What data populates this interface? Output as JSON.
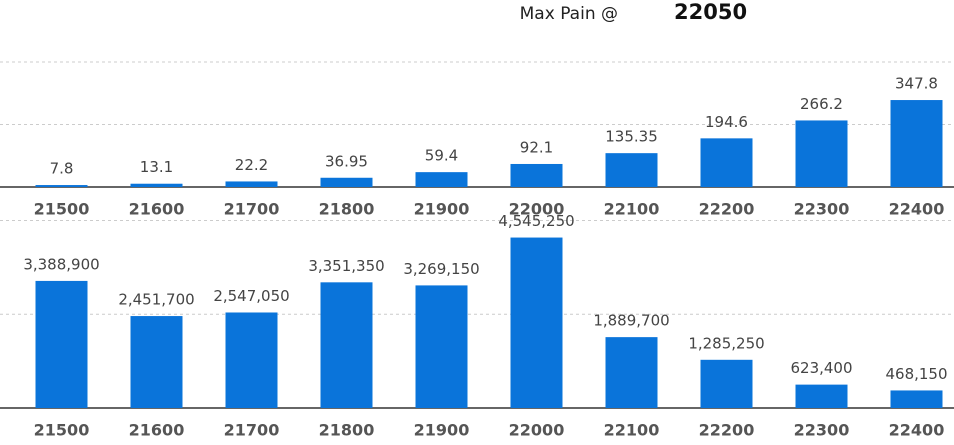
{
  "header": {
    "label": "Max Pain @",
    "value": 22050
  },
  "chart_data": [
    {
      "type": "bar",
      "color": "#0a74da",
      "grid": true,
      "categories": [
        "21500",
        "21600",
        "21700",
        "21800",
        "21900",
        "22000",
        "22100",
        "22200",
        "22300",
        "22400"
      ],
      "values": [
        7.8,
        13.1,
        22.2,
        36.95,
        59.4,
        92.1,
        135.35,
        194.6,
        266.2,
        347.8
      ],
      "ylim": [
        0,
        500
      ],
      "yticks": [
        0,
        250,
        500
      ]
    },
    {
      "type": "bar",
      "color": "#0a74da",
      "grid": true,
      "categories": [
        "21500",
        "21600",
        "21700",
        "21800",
        "21900",
        "22000",
        "22100",
        "22200",
        "22300",
        "22400"
      ],
      "values": [
        3388900,
        2451700,
        2547050,
        3351350,
        3269150,
        4545250,
        1889700,
        1285250,
        623400,
        468150
      ],
      "value_labels": [
        "3,388,900",
        "2,451,700",
        "2,547,050",
        "3,351,350",
        "3,269,150",
        "4,545,250",
        "1,889,700",
        "1,285,250",
        "623,400",
        "468,150"
      ],
      "ylim": [
        0,
        5000000
      ],
      "yticks": [
        0,
        2500000,
        5000000
      ]
    }
  ]
}
